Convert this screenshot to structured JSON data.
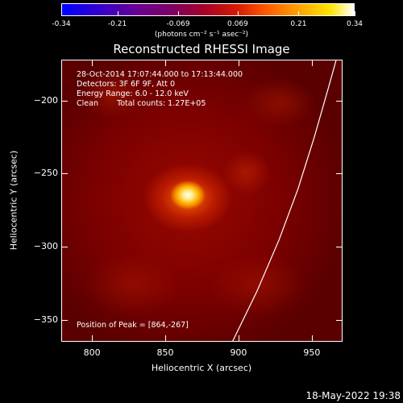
{
  "colorbar": {
    "ticks": [
      "-0.34",
      "-0.21",
      "-0.069",
      "0.069",
      "0.21",
      "0.34"
    ],
    "units": "(photons cm⁻² s⁻¹ asec⁻²)",
    "range": [
      -0.34,
      0.34
    ],
    "colors": [
      "#0000ff",
      "#6a0090",
      "#a3002a",
      "#ff5a00",
      "#ffe600",
      "#ffffff"
    ]
  },
  "title": "Reconstructed RHESSI Image",
  "annotations": {
    "time_range": "28-Oct-2014 17:07:44.000 to 17:13:44.000",
    "detectors": "Detectors: 3F 6F 9F, Att 0",
    "energy": "Energy Range: 6.0 - 12.0 keV",
    "clean_label": "Clean",
    "total_counts": "Total counts: 1.27E+05",
    "peak": "Position of Peak = [864,-267]"
  },
  "timestamp": "18-May-2022 19:38",
  "chart_data": {
    "type": "heatmap",
    "title": "Reconstructed RHESSI Image",
    "xlabel": "Heliocentric X (arcsec)",
    "ylabel": "Heliocentric Y (arcsec)",
    "xlim": [
      779,
      971
    ],
    "ylim": [
      -365,
      -172
    ],
    "x_ticks": [
      800,
      850,
      900,
      950
    ],
    "y_ticks": [
      -200,
      -250,
      -300,
      -350
    ],
    "peak": [
      864,
      -267
    ],
    "colorbar_range": [
      -0.34,
      0.34
    ],
    "limb_curve": {
      "description": "solar limb",
      "points": [
        [
          895,
          -365
        ],
        [
          912,
          -330
        ],
        [
          927,
          -295
        ],
        [
          940,
          -260
        ],
        [
          951,
          -225
        ],
        [
          961,
          -190
        ],
        [
          966,
          -172
        ]
      ]
    }
  }
}
